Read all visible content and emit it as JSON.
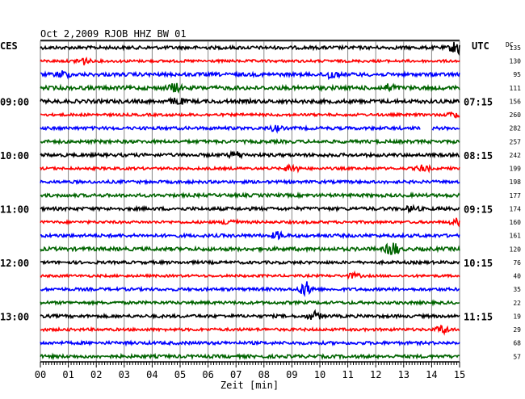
{
  "chart_data": {
    "type": "line",
    "title": "Oct 2,2009   RJOB HHZ BW 01",
    "left_timezone": "CES",
    "right_timezone": "UTC",
    "right_column_header": "DC",
    "xlabel": "Zeit [min]",
    "x_ticks": [
      "00",
      "01",
      "02",
      "03",
      "04",
      "05",
      "06",
      "07",
      "08",
      "09",
      "10",
      "11",
      "12",
      "13",
      "14",
      "15"
    ],
    "xlim": [
      0,
      15
    ],
    "grid": true,
    "left_hour_labels": [
      {
        "row": 4,
        "text": "09:00"
      },
      {
        "row": 8,
        "text": "10:00"
      },
      {
        "row": 12,
        "text": "11:00"
      },
      {
        "row": 16,
        "text": "12:00"
      },
      {
        "row": 20,
        "text": "13:00"
      }
    ],
    "right_hour_labels": [
      {
        "row": 0,
        "text": ""
      },
      {
        "row": 4,
        "text": "07:15"
      },
      {
        "row": 8,
        "text": "08:15"
      },
      {
        "row": 12,
        "text": "09:15"
      },
      {
        "row": 16,
        "text": "10:15"
      },
      {
        "row": 20,
        "text": "11:15"
      }
    ],
    "series_colors": [
      "#000000",
      "#ff0000",
      "#0000ff",
      "#006400"
    ],
    "series": [
      {
        "dc": "135",
        "amplitude": 2.0,
        "events": [
          {
            "x": 14.9,
            "amp": 9
          }
        ]
      },
      {
        "dc": "130",
        "amplitude": 1.6,
        "events": [
          {
            "x": 1.5,
            "amp": 5
          }
        ]
      },
      {
        "dc": "95",
        "amplitude": 2.2,
        "events": [
          {
            "x": 0.8,
            "amp": 4
          },
          {
            "x": 10.4,
            "amp": 5
          }
        ]
      },
      {
        "dc": "111",
        "amplitude": 2.4,
        "events": [
          {
            "x": 4.8,
            "amp": 5
          },
          {
            "x": 12.5,
            "amp": 4
          }
        ]
      },
      {
        "dc": "156",
        "amplitude": 2.3,
        "events": [
          {
            "x": 4.9,
            "amp": 4
          }
        ]
      },
      {
        "dc": "260",
        "amplitude": 1.6,
        "events": [
          {
            "x": 14.8,
            "amp": 3
          }
        ]
      },
      {
        "dc": "282",
        "amplitude": 1.9,
        "events": [
          {
            "x": 8.4,
            "amp": 3
          }
        ],
        "gap": [
          13.6,
          14.0
        ]
      },
      {
        "dc": "257",
        "amplitude": 2.0,
        "events": []
      },
      {
        "dc": "242",
        "amplitude": 2.0,
        "events": [
          {
            "x": 7.0,
            "amp": 4
          }
        ]
      },
      {
        "dc": "199",
        "amplitude": 1.6,
        "events": [
          {
            "x": 9.0,
            "amp": 5
          },
          {
            "x": 13.7,
            "amp": 4
          }
        ]
      },
      {
        "dc": "198",
        "amplitude": 1.8,
        "events": []
      },
      {
        "dc": "177",
        "amplitude": 2.0,
        "events": []
      },
      {
        "dc": "174",
        "amplitude": 2.0,
        "events": [
          {
            "x": 13.3,
            "amp": 3
          }
        ]
      },
      {
        "dc": "160",
        "amplitude": 1.6,
        "events": [
          {
            "x": 6.8,
            "amp": 4
          },
          {
            "x": 14.9,
            "amp": 4
          }
        ]
      },
      {
        "dc": "161",
        "amplitude": 2.0,
        "events": [
          {
            "x": 8.5,
            "amp": 4
          }
        ]
      },
      {
        "dc": "120",
        "amplitude": 2.2,
        "events": [
          {
            "x": 12.6,
            "amp": 9
          }
        ]
      },
      {
        "dc": "76",
        "amplitude": 1.8,
        "events": []
      },
      {
        "dc": "40",
        "amplitude": 1.5,
        "events": [
          {
            "x": 11.2,
            "amp": 3
          }
        ]
      },
      {
        "dc": "35",
        "amplitude": 1.8,
        "events": [
          {
            "x": 9.5,
            "amp": 9
          }
        ]
      },
      {
        "dc": "22",
        "amplitude": 1.8,
        "events": []
      },
      {
        "dc": "19",
        "amplitude": 1.9,
        "events": [
          {
            "x": 9.8,
            "amp": 5
          }
        ]
      },
      {
        "dc": "29",
        "amplitude": 1.7,
        "events": [
          {
            "x": 14.4,
            "amp": 5
          }
        ]
      },
      {
        "dc": "68",
        "amplitude": 1.9,
        "events": []
      },
      {
        "dc": "57",
        "amplitude": 2.0,
        "events": []
      }
    ]
  }
}
